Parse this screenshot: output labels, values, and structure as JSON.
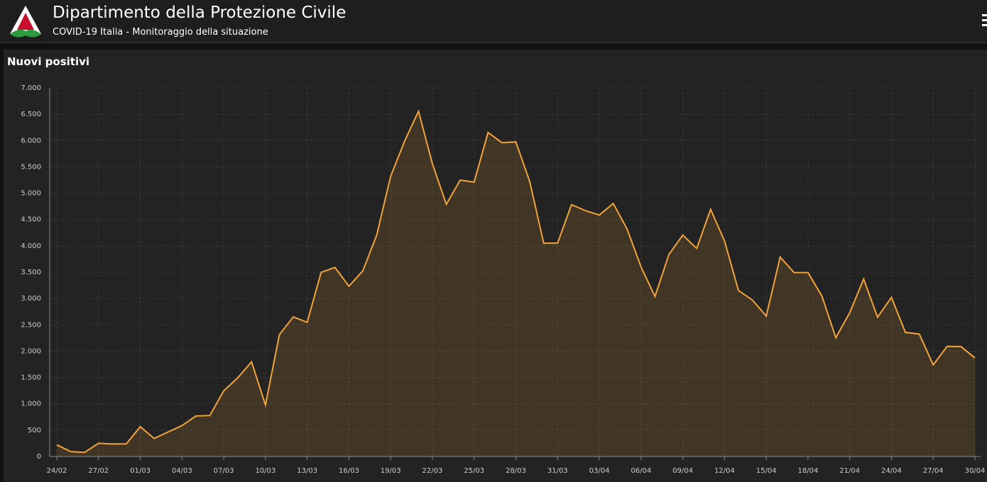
{
  "header": {
    "title": "Dipartimento della Protezione Civile",
    "subtitle": "COVID-19 Italia - Monitoraggio della situazione"
  },
  "chart_data": {
    "type": "area",
    "title": "Nuovi positivi",
    "color": "#f2a33a",
    "grid": true,
    "categories": [
      "24/02",
      null,
      null,
      "27/02",
      null,
      null,
      "01/03",
      null,
      null,
      "04/03",
      null,
      null,
      "07/03",
      null,
      null,
      "10/03",
      null,
      null,
      "13/03",
      null,
      null,
      "16/03",
      null,
      null,
      "19/03",
      null,
      null,
      "22/03",
      null,
      null,
      "25/03",
      null,
      null,
      "28/03",
      null,
      null,
      "31/03",
      null,
      null,
      "03/04",
      null,
      null,
      "06/04",
      null,
      null,
      "09/04",
      null,
      null,
      "12/04",
      null,
      null,
      "15/04",
      null,
      null,
      "18/04",
      null,
      null,
      "21/04",
      null,
      null,
      "24/04",
      null,
      null,
      "27/04",
      null,
      null,
      "30/04"
    ],
    "values": [
      221,
      93,
      78,
      250,
      238,
      240,
      566,
      342,
      466,
      587,
      769,
      778,
      1247,
      1492,
      1797,
      977,
      2313,
      2651,
      2547,
      3497,
      3590,
      3233,
      3526,
      4207,
      5322,
      5986,
      6557,
      5560,
      4789,
      5249,
      5210,
      6153,
      5959,
      5974,
      5217,
      4050,
      4053,
      4782,
      4668,
      4585,
      4805,
      4316,
      3599,
      3039,
      3836,
      4204,
      3951,
      4694,
      4092,
      3153,
      2972,
      2667,
      3786,
      3493,
      3491,
      3047,
      2256,
      2729,
      3370,
      2646,
      3021,
      2357,
      2324,
      1739,
      2091,
      2086,
      1872
    ],
    "ylim": [
      0,
      7000
    ],
    "yticks": [
      0,
      500,
      {
        "value": 1000,
        "label": "1.000"
      },
      {
        "value": 1500,
        "label": "1.500"
      },
      {
        "value": 2000,
        "label": "2.000"
      },
      {
        "value": 2500,
        "label": "2.500"
      },
      {
        "value": 3000,
        "label": "3.000"
      },
      {
        "value": 3500,
        "label": "3.500"
      },
      {
        "value": 4000,
        "label": "4.000"
      },
      {
        "value": 4500,
        "label": "4.500"
      },
      {
        "value": 5000,
        "label": "5.000"
      },
      {
        "value": 5500,
        "label": "5.500"
      },
      {
        "value": 6000,
        "label": "6.000"
      },
      {
        "value": 6500,
        "label": "6.500"
      },
      {
        "value": 7000,
        "label": "7.000"
      }
    ]
  }
}
